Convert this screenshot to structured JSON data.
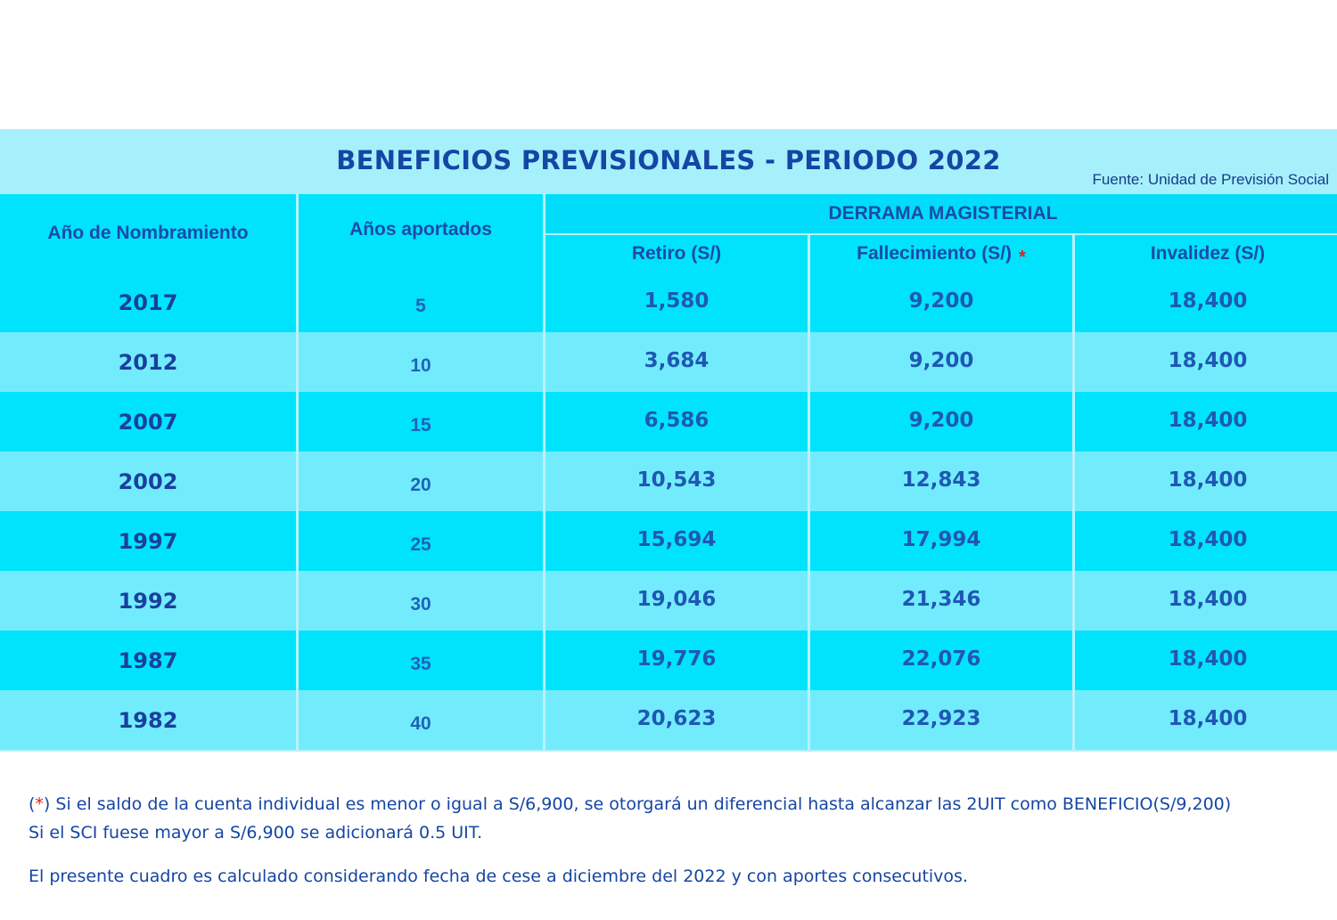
{
  "title": "BENEFICIOS PREVISIONALES - PERIODO 2022",
  "source": "Fuente: Unidad de Previsión Social",
  "headers": {
    "year": "Año de Nombramiento",
    "years_contributed": "Años aportados",
    "group": "DERRAMA MAGISTERIAL",
    "retiro": "Retiro (S/)",
    "fallecimiento": "Fallecimiento (S/)",
    "fallecimiento_mark": "*",
    "invalidez": "Invalidez (S/)"
  },
  "rows": [
    {
      "year": "2017",
      "years": "5",
      "retiro": "1,580",
      "fallecimiento": "9,200",
      "invalidez": "18,400"
    },
    {
      "year": "2012",
      "years": "10",
      "retiro": "3,684",
      "fallecimiento": "9,200",
      "invalidez": "18,400"
    },
    {
      "year": "2007",
      "years": "15",
      "retiro": "6,586",
      "fallecimiento": "9,200",
      "invalidez": "18,400"
    },
    {
      "year": "2002",
      "years": "20",
      "retiro": "10,543",
      "fallecimiento": "12,843",
      "invalidez": "18,400"
    },
    {
      "year": "1997",
      "years": "25",
      "retiro": "15,694",
      "fallecimiento": "17,994",
      "invalidez": "18,400"
    },
    {
      "year": "1992",
      "years": "30",
      "retiro": "19,046",
      "fallecimiento": "21,346",
      "invalidez": "18,400"
    },
    {
      "year": "1987",
      "years": "35",
      "retiro": "19,776",
      "fallecimiento": "22,076",
      "invalidez": "18,400"
    },
    {
      "year": "1982",
      "years": "40",
      "retiro": "20,623",
      "fallecimiento": "22,923",
      "invalidez": "18,400"
    }
  ],
  "notes": {
    "open_paren": "(",
    "mark": "*",
    "close_paren": ")",
    "line1": " Si el saldo de la cuenta individual es menor o igual a S/6,900, se otorgará un diferencial hasta alcanzar las 2UIT como BENEFICIO(S/9,200)",
    "line2": "Si el SCI fuese mayor a S/6,900 se adicionará 0.5 UIT.",
    "line3": "El presente cuadro es calculado considerando fecha de cese a diciembre del 2022 y con aportes consecutivos."
  },
  "colors": {
    "text_primary": "#1546a4",
    "header_band": "#00e3fc",
    "row_dark": "#00e3fc",
    "row_light": "#72ecfd",
    "title_band": "#a6f0fc",
    "asterisk": "#e02020"
  }
}
